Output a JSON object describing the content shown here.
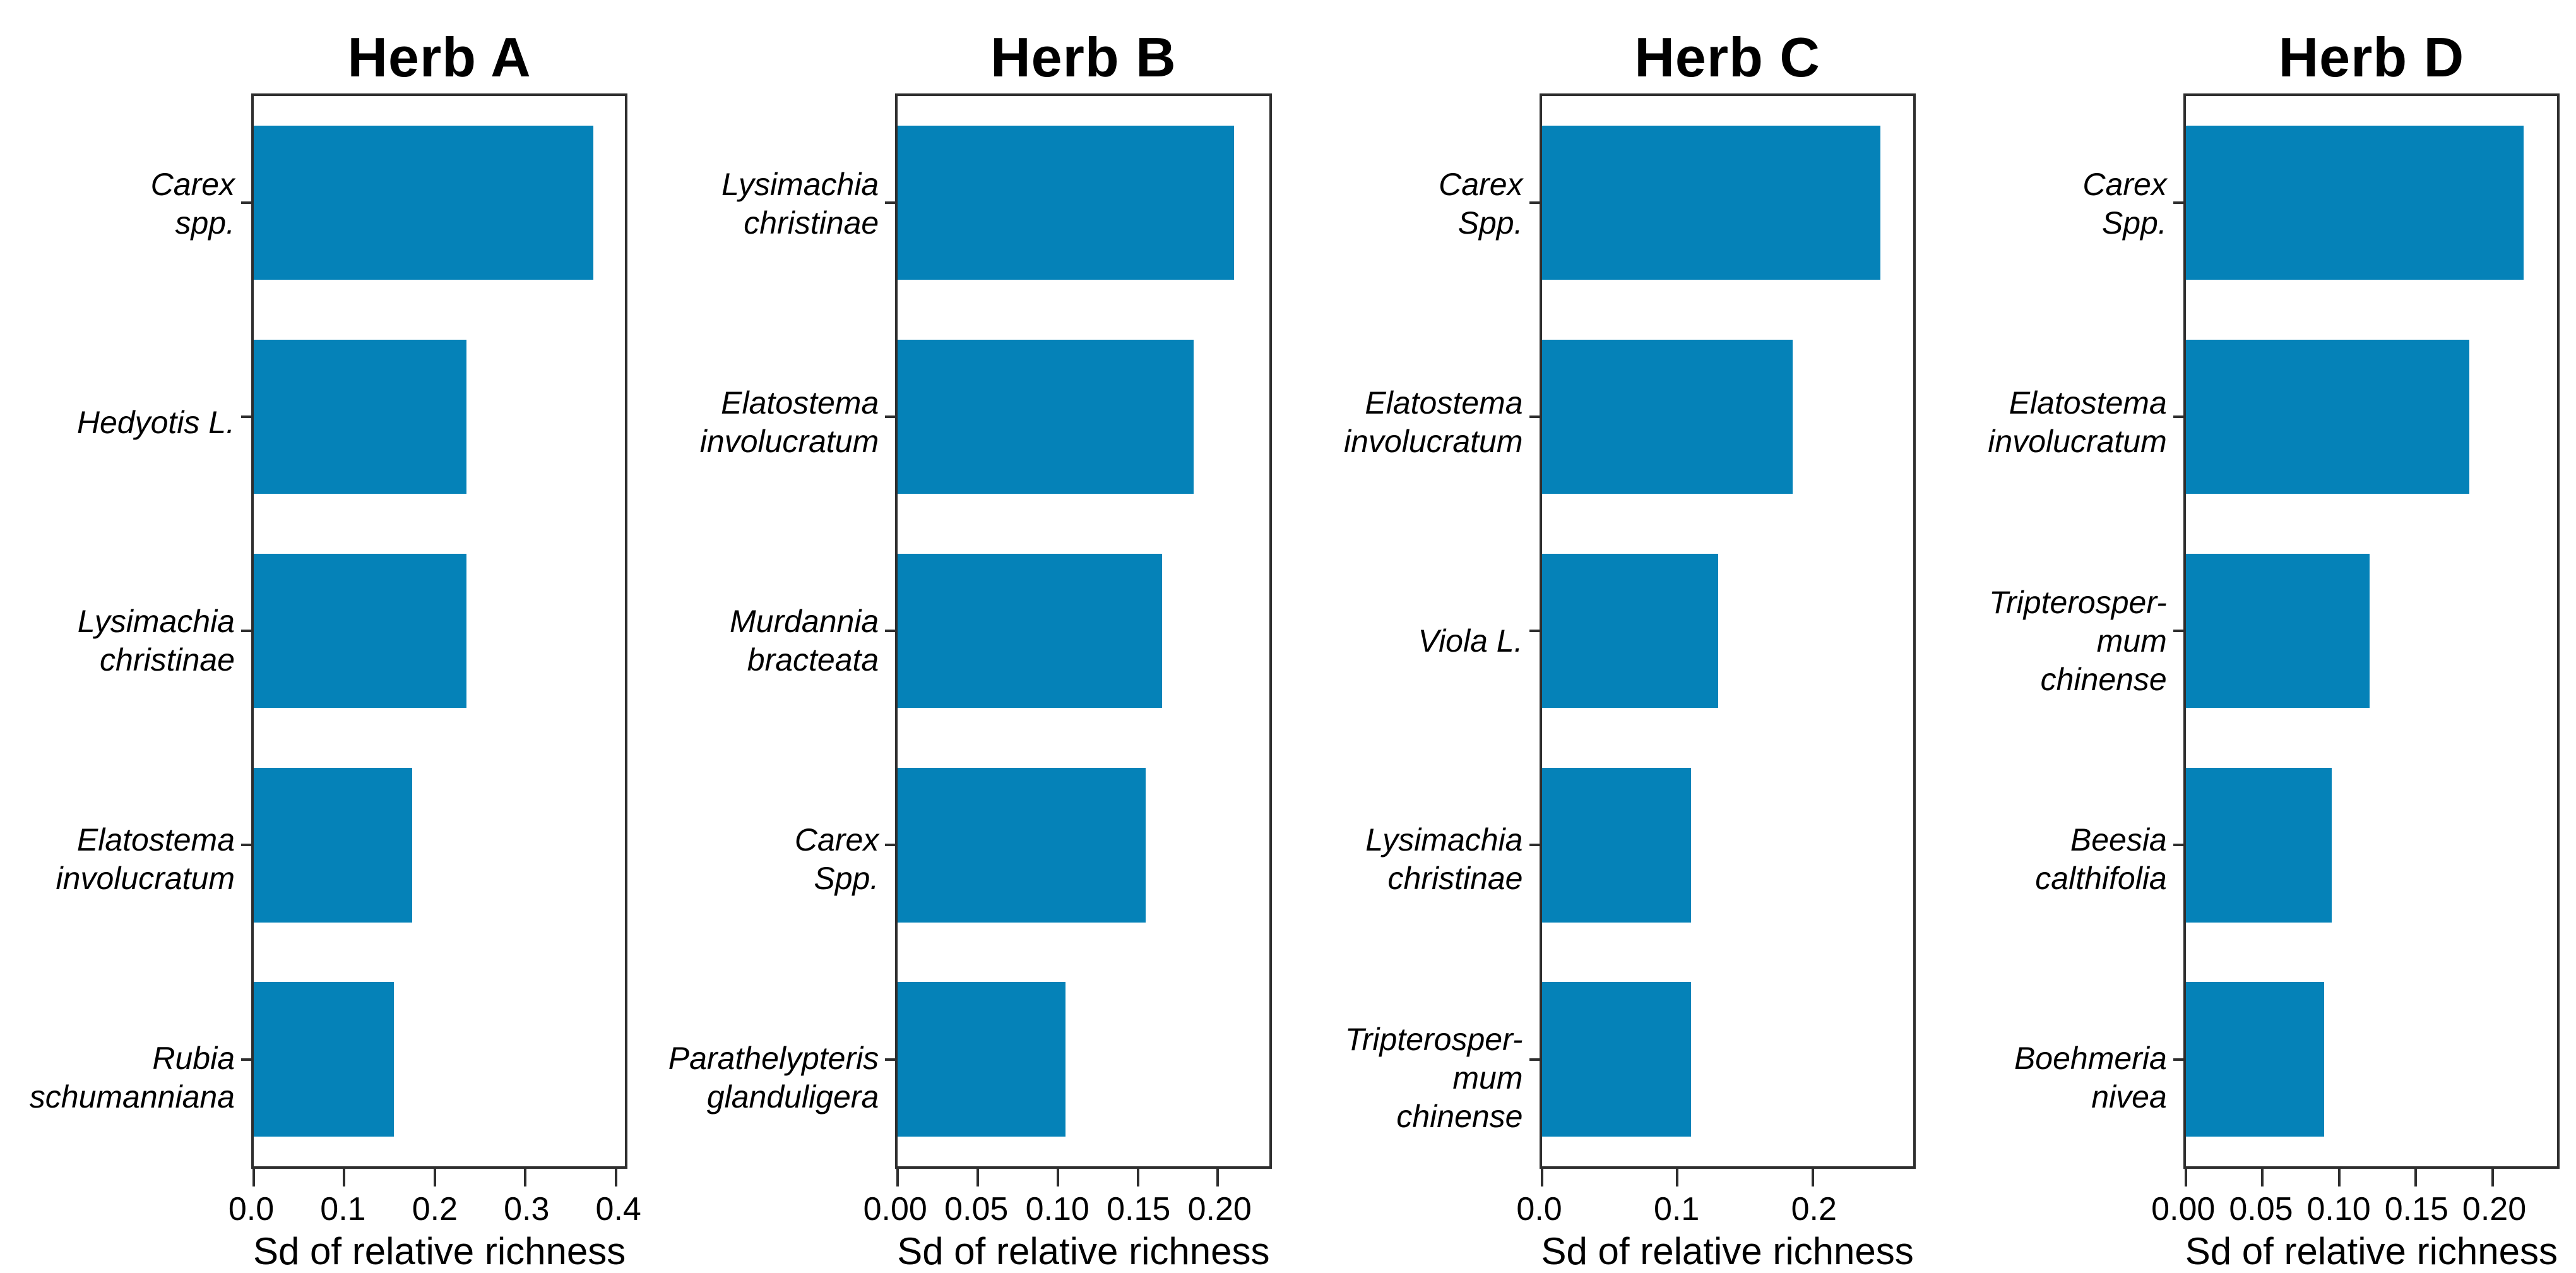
{
  "figure": {
    "background": "#ffffff",
    "bar_color": "#0582b8",
    "frame_color": "#2e2e2e",
    "text_color": "#000000",
    "xlabel": "Sd of relative richness"
  },
  "chart_data": [
    {
      "type": "bar",
      "orientation": "horizontal",
      "title": "Herb A",
      "xlabel": "Sd of relative richness",
      "categories": [
        "Carex spp.",
        "Hedyotis L.",
        "Lysimachia christinae",
        "Elatostema involucratum",
        "Rubia schumanniana"
      ],
      "category_lines": [
        [
          "Carex",
          "spp."
        ],
        [
          "Hedyotis L."
        ],
        [
          "Lysimachia",
          "christinae"
        ],
        [
          "Elatostema",
          "involucratum"
        ],
        [
          "Rubia",
          "schumanniana"
        ]
      ],
      "values": [
        0.375,
        0.235,
        0.235,
        0.175,
        0.155
      ],
      "xticks": [
        0,
        0.1,
        0.2,
        0.3,
        0.4
      ],
      "xtick_labels": [
        "0.0",
        "0.1",
        "0.2",
        "0.3",
        "0.4"
      ],
      "xlim": [
        0,
        0.41
      ],
      "grid": false,
      "legend": null
    },
    {
      "type": "bar",
      "orientation": "horizontal",
      "title": "Herb B",
      "xlabel": "Sd of relative richness",
      "categories": [
        "Lysimachia christinae",
        "Elatostema involucratum",
        "Murdannia bracteata",
        "Carex Spp.",
        "Parathelypteris glanduligera"
      ],
      "category_lines": [
        [
          "Lysimachia",
          "christinae"
        ],
        [
          "Elatostema",
          "involucratum"
        ],
        [
          "Murdannia",
          "bracteata"
        ],
        [
          "Carex",
          "Spp."
        ],
        [
          "Parathelypteris",
          "glanduligera"
        ]
      ],
      "values": [
        0.21,
        0.185,
        0.165,
        0.155,
        0.105
      ],
      "xticks": [
        0,
        0.05,
        0.1,
        0.15,
        0.2
      ],
      "xtick_labels": [
        "0.00",
        "0.05",
        "0.10",
        "0.15",
        "0.20"
      ],
      "xlim": [
        0,
        0.232
      ],
      "grid": false,
      "legend": null
    },
    {
      "type": "bar",
      "orientation": "horizontal",
      "title": "Herb C",
      "xlabel": "Sd of relative richness",
      "categories": [
        "Carex Spp.",
        "Elatostema involucratum",
        "Viola L.",
        "Lysimachia christinae",
        "Tripterosper­mum chinense"
      ],
      "category_lines": [
        [
          "Carex",
          "Spp."
        ],
        [
          "Elatostema",
          "involucratum"
        ],
        [
          "Viola L."
        ],
        [
          "Lysimachia",
          "christinae"
        ],
        [
          "Tripterosper-",
          "mum",
          "chinense"
        ]
      ],
      "values": [
        0.25,
        0.185,
        0.13,
        0.11,
        0.11
      ],
      "xticks": [
        0,
        0.1,
        0.2
      ],
      "xtick_labels": [
        "0.0",
        "0.1",
        "0.2"
      ],
      "xlim": [
        0,
        0.274
      ],
      "grid": false,
      "legend": null
    },
    {
      "type": "bar",
      "orientation": "horizontal",
      "title": "Herb D",
      "xlabel": "Sd of relative richness",
      "categories": [
        "Carex Spp.",
        "Elatostema involucratum",
        "Tripterosper­mum chinense",
        "Beesia calthifolia",
        "Boehmeria nivea"
      ],
      "category_lines": [
        [
          "Carex",
          "Spp."
        ],
        [
          "Elatostema",
          "involucratum"
        ],
        [
          "Tripterosper-",
          "mum",
          "chinense"
        ],
        [
          "Beesia",
          "calthifolia"
        ],
        [
          "Boehmeria",
          "nivea"
        ]
      ],
      "values": [
        0.22,
        0.185,
        0.12,
        0.095,
        0.09
      ],
      "xticks": [
        0,
        0.05,
        0.1,
        0.15,
        0.2
      ],
      "xtick_labels": [
        "0.00",
        "0.05",
        "0.10",
        "0.15",
        "0.20"
      ],
      "xlim": [
        0,
        0.242
      ],
      "grid": false,
      "legend": null
    }
  ]
}
